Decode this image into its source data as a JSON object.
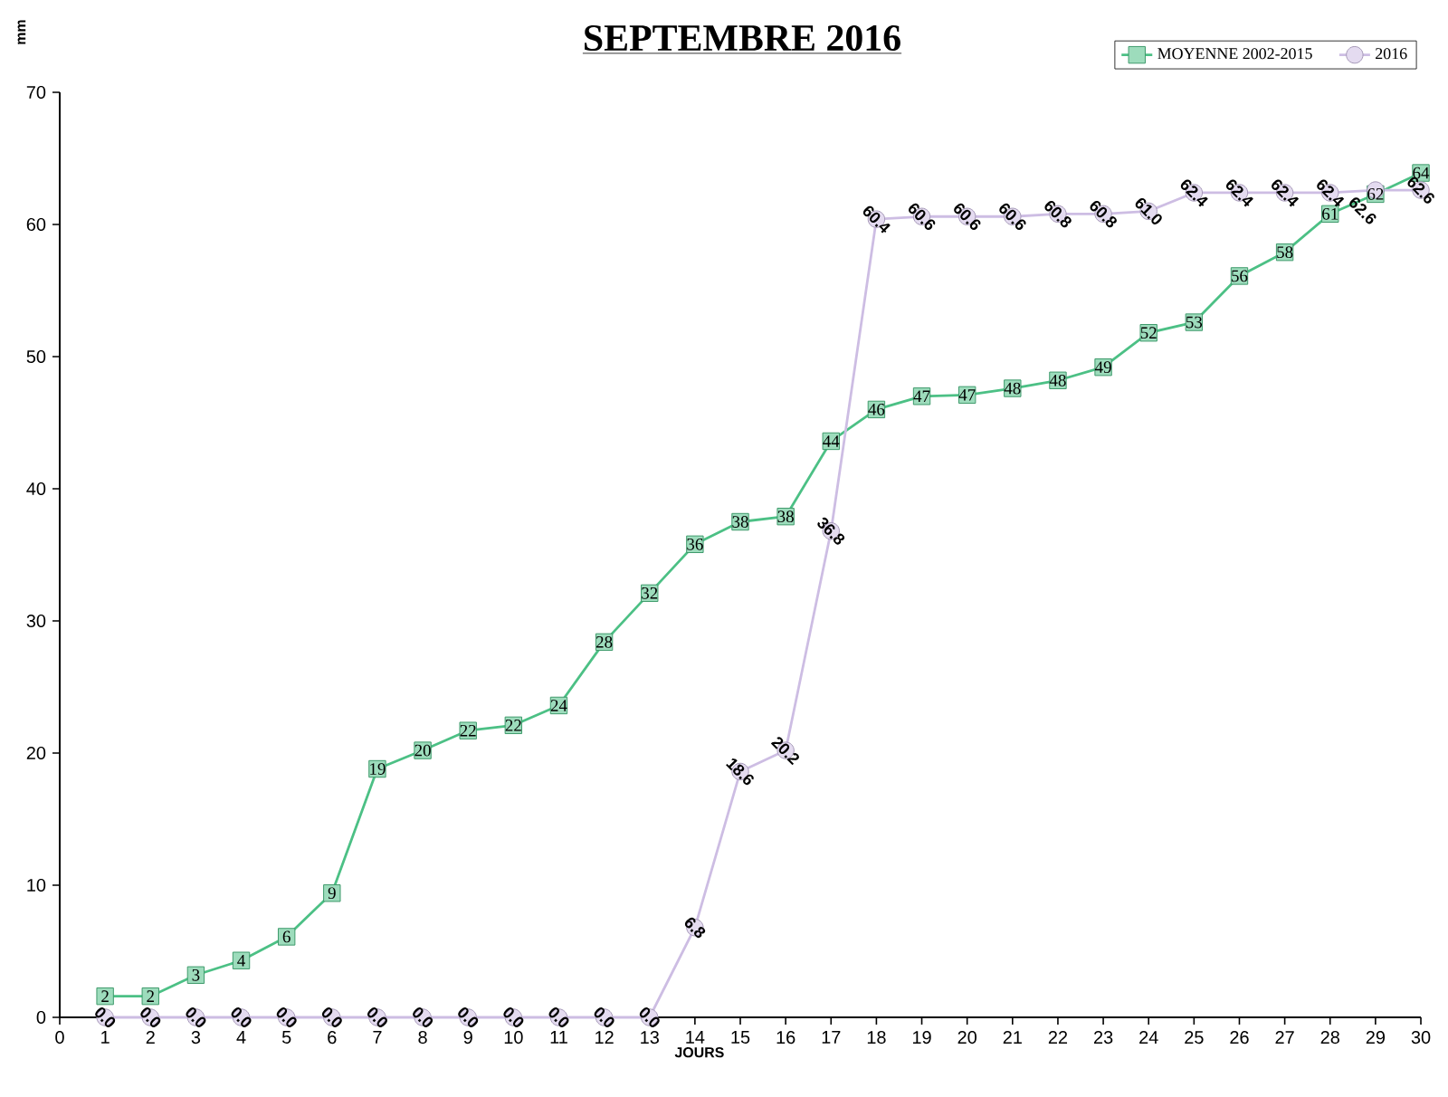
{
  "chart_data": {
    "type": "line",
    "title": "SEPTEMBRE 2016",
    "xlabel": "JOURS",
    "ylabel": "mm",
    "x": [
      1,
      2,
      3,
      4,
      5,
      6,
      7,
      8,
      9,
      10,
      11,
      12,
      13,
      14,
      15,
      16,
      17,
      18,
      19,
      20,
      21,
      22,
      23,
      24,
      25,
      26,
      27,
      28,
      29,
      30
    ],
    "xlim": [
      0,
      30
    ],
    "xticks": [
      0,
      1,
      2,
      3,
      4,
      5,
      6,
      7,
      8,
      9,
      10,
      11,
      12,
      13,
      14,
      15,
      16,
      17,
      18,
      19,
      20,
      21,
      22,
      23,
      24,
      25,
      26,
      27,
      28,
      29,
      30
    ],
    "ylim": [
      0,
      70
    ],
    "yticks": [
      0,
      10,
      20,
      30,
      40,
      50,
      60,
      70
    ],
    "legend": "top right",
    "series": [
      {
        "name": "MOYENNE 2002-2015",
        "color": "#4cc085",
        "marker": "square",
        "values": [
          1.6,
          1.6,
          3.2,
          4.3,
          6.1,
          9.4,
          18.8,
          20.2,
          21.7,
          22.1,
          23.6,
          28.4,
          32.1,
          35.8,
          37.5,
          37.9,
          43.6,
          46.0,
          47.0,
          47.1,
          47.6,
          48.2,
          49.2,
          51.8,
          52.6,
          56.1,
          57.9,
          60.8,
          62.3,
          63.9
        ],
        "value_labels": [
          "2",
          "2",
          "3",
          "4",
          "6",
          "9",
          "19",
          "20",
          "22",
          "22",
          "24",
          "28",
          "32",
          "36",
          "38",
          "38",
          "44",
          "46",
          "47",
          "47",
          "48",
          "48",
          "49",
          "52",
          "53",
          "56",
          "58",
          "61",
          "62",
          "64"
        ]
      },
      {
        "name": "2016",
        "color": "#cdbde3",
        "marker": "circle",
        "values": [
          0.0,
          0.0,
          0.0,
          0.0,
          0.0,
          0.0,
          0.0,
          0.0,
          0.0,
          0.0,
          0.0,
          0.0,
          0.0,
          6.8,
          18.6,
          20.2,
          36.8,
          60.4,
          60.6,
          60.6,
          60.6,
          60.8,
          60.8,
          61.0,
          62.4,
          62.4,
          62.4,
          62.4,
          62.6,
          62.6
        ],
        "value_labels": [
          "0.0",
          "0.0",
          "0.0",
          "0.0",
          "0.0",
          "0.0",
          "0.0",
          "0.0",
          "0.0",
          "0.0",
          "0.0",
          "0.0",
          "0.0",
          "6.8",
          "18.6",
          "20.2",
          "36.8",
          "60.4",
          "60.6",
          "60.6",
          "60.6",
          "60.8",
          "60.8",
          "61.0",
          "62.4",
          "62.4",
          "62.4",
          "62.4",
          "62.6",
          "62.6"
        ]
      }
    ]
  }
}
